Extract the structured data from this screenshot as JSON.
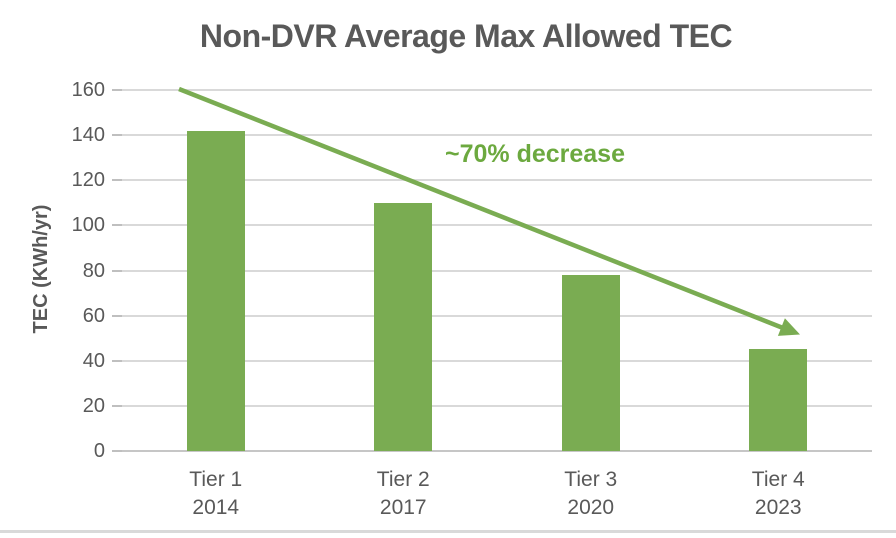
{
  "chart_data": {
    "type": "bar",
    "title": "Non-DVR Average Max Allowed TEC",
    "categories": [
      "Tier 1",
      "Tier 2",
      "Tier 3",
      "Tier 4"
    ],
    "year_labels": [
      "2014",
      "2017",
      "2020",
      "2023"
    ],
    "values": [
      142,
      110,
      78,
      45
    ],
    "xlabel": "",
    "ylabel": "TEC (KWh/yr)",
    "ylim": [
      0,
      160
    ],
    "ytick_step": 20,
    "ytick_labels": [
      "0",
      "20",
      "40",
      "60",
      "80",
      "100",
      "120",
      "140",
      "160"
    ],
    "grid": "horizontal",
    "legend": "none",
    "annotation": {
      "text": "~70% decrease",
      "arrow_from_value": 160,
      "arrow_to_value": 52
    }
  },
  "colors": {
    "accent_green": "#7AAC52",
    "annotation_green": "#6CA93F",
    "text_gray": "#595959",
    "gridline_gray": "#D9D9D9",
    "baseline_gray": "#C6C6C6",
    "tick_gray": "#BFBFBF",
    "divider_gray": "#D9D9D9"
  }
}
